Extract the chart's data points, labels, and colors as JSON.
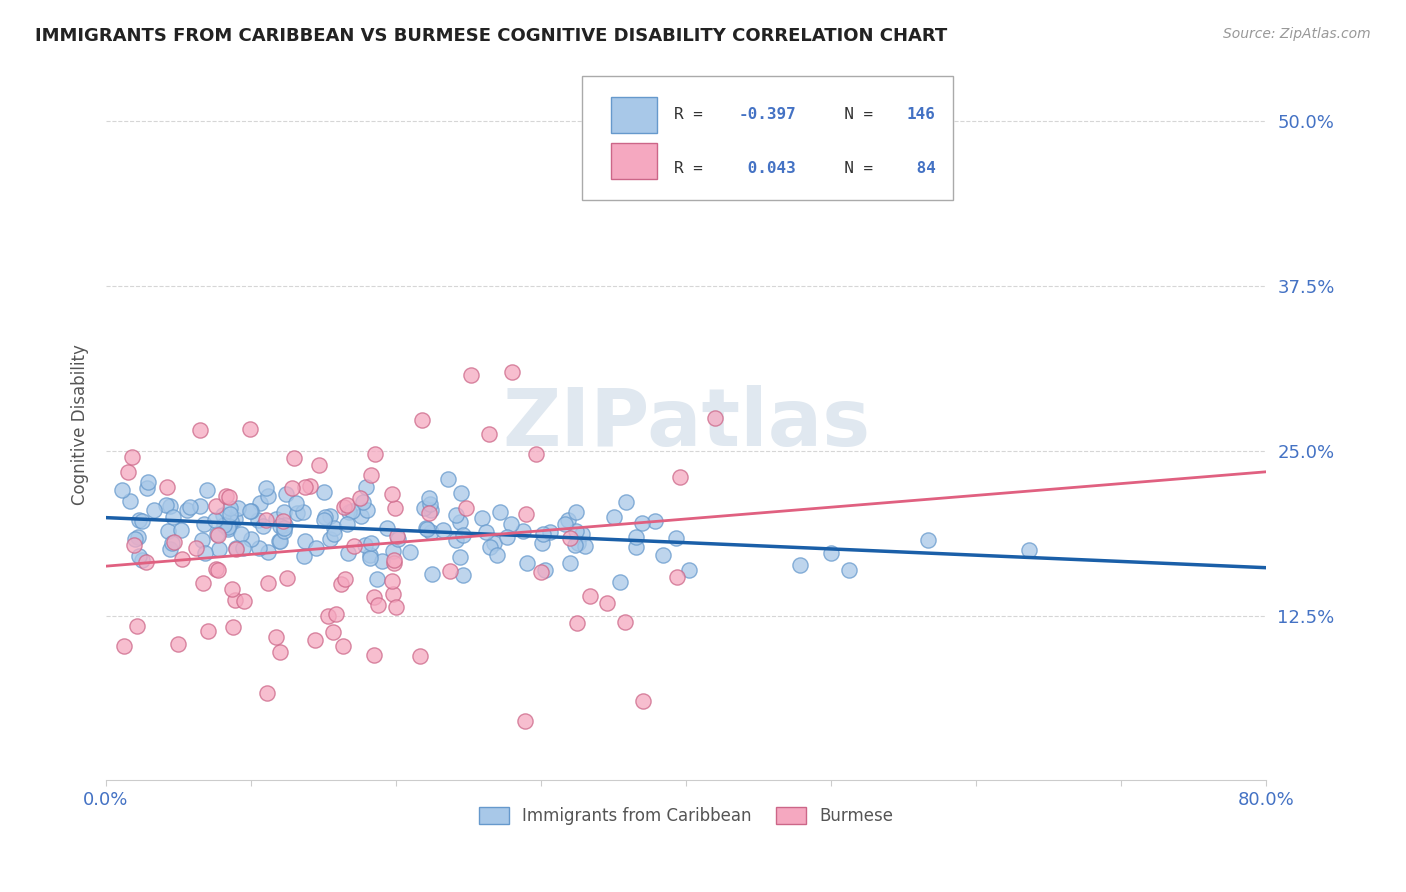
{
  "title": "IMMIGRANTS FROM CARIBBEAN VS BURMESE COGNITIVE DISABILITY CORRELATION CHART",
  "source": "Source: ZipAtlas.com",
  "ylabel": "Cognitive Disability",
  "ytick_labels": [
    "12.5%",
    "25.0%",
    "37.5%",
    "50.0%"
  ],
  "ytick_values": [
    0.125,
    0.25,
    0.375,
    0.5
  ],
  "xlim": [
    0.0,
    0.8
  ],
  "ylim": [
    0.0,
    0.54
  ],
  "carib_R": -0.397,
  "carib_N": 146,
  "burm_R": 0.043,
  "burm_N": 84,
  "carib_color": "#a8c8e8",
  "carib_edge": "#6699cc",
  "carib_line_color": "#1a5fa8",
  "burm_color": "#f5a8c0",
  "burm_edge": "#cc6688",
  "burm_line_color": "#e06080",
  "watermark": "ZIPatlas",
  "background_color": "#ffffff",
  "grid_color": "#cccccc",
  "axis_label_color": "#4472c4",
  "title_color": "#222222",
  "title_fontsize": 13,
  "source_fontsize": 10
}
